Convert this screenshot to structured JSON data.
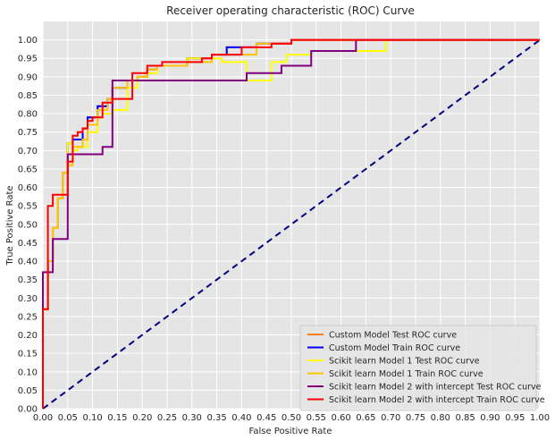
{
  "chart_data": {
    "type": "line",
    "title": "Receiver operating characteristic (ROC) Curve",
    "xlabel": "False Positive Rate",
    "ylabel": "True Positive Rate",
    "xlim": [
      0,
      1
    ],
    "ylim": [
      0,
      1.05
    ],
    "x_ticks": [
      "0.00",
      "0.05",
      "0.10",
      "0.15",
      "0.20",
      "0.25",
      "0.30",
      "0.35",
      "0.40",
      "0.45",
      "0.50",
      "0.55",
      "0.60",
      "0.65",
      "0.70",
      "0.75",
      "0.80",
      "0.85",
      "0.90",
      "0.95",
      "1.00"
    ],
    "y_ticks": [
      "0.00",
      "0.05",
      "0.10",
      "0.15",
      "0.20",
      "0.25",
      "0.30",
      "0.35",
      "0.40",
      "0.45",
      "0.50",
      "0.55",
      "0.60",
      "0.65",
      "0.70",
      "0.75",
      "0.80",
      "0.85",
      "0.90",
      "0.95",
      "1.00"
    ],
    "grid": true,
    "legend_position": "bottom-right",
    "background": "#e5e5e5",
    "series": [
      {
        "name": "Custom Model Test ROC curve",
        "color": "#ff7f0e",
        "x": [
          0,
          0,
          0.01,
          0.01,
          0.02,
          0.02,
          0.03,
          0.03,
          0.04,
          0.04,
          0.05,
          0.05,
          0.06,
          0.06,
          0.08,
          0.08,
          0.09,
          0.09,
          0.11,
          0.11,
          0.13,
          0.13,
          0.14,
          0.14,
          0.17,
          0.17,
          0.19,
          0.19,
          0.21,
          0.21,
          0.23,
          0.23,
          0.29,
          0.29,
          0.34,
          0.34,
          0.37,
          0.37,
          0.43,
          0.43,
          0.5,
          0.5,
          1
        ],
        "y": [
          0,
          0.27,
          0.27,
          0.4,
          0.4,
          0.49,
          0.49,
          0.57,
          0.57,
          0.64,
          0.64,
          0.72,
          0.72,
          0.73,
          0.73,
          0.76,
          0.76,
          0.79,
          0.79,
          0.82,
          0.82,
          0.84,
          0.84,
          0.87,
          0.87,
          0.89,
          0.89,
          0.9,
          0.9,
          0.92,
          0.92,
          0.93,
          0.93,
          0.95,
          0.95,
          0.96,
          0.96,
          0.98,
          0.98,
          0.99,
          0.99,
          1,
          1
        ]
      },
      {
        "name": "Custom Model Train ROC curve",
        "color": "#0000ff",
        "x": [
          0,
          0,
          0.01,
          0.01,
          0.02,
          0.02,
          0.03,
          0.03,
          0.04,
          0.04,
          0.05,
          0.05,
          0.06,
          0.06,
          0.08,
          0.08,
          0.09,
          0.09,
          0.11,
          0.11,
          0.13,
          0.13,
          0.14,
          0.14,
          0.17,
          0.17,
          0.19,
          0.19,
          0.21,
          0.21,
          0.23,
          0.23,
          0.29,
          0.29,
          0.34,
          0.34,
          0.37,
          0.37,
          0.43,
          0.43,
          0.5,
          0.5,
          1
        ],
        "y": [
          0,
          0.27,
          0.27,
          0.4,
          0.4,
          0.49,
          0.49,
          0.57,
          0.57,
          0.64,
          0.64,
          0.72,
          0.72,
          0.73,
          0.73,
          0.76,
          0.76,
          0.79,
          0.79,
          0.82,
          0.82,
          0.84,
          0.84,
          0.87,
          0.87,
          0.89,
          0.89,
          0.9,
          0.9,
          0.92,
          0.92,
          0.93,
          0.93,
          0.95,
          0.95,
          0.96,
          0.96,
          0.98,
          0.98,
          0.99,
          0.99,
          1,
          1
        ]
      },
      {
        "name": "Scikit learn Model 1 Test ROC curve",
        "color": "#ffff00",
        "x": [
          0,
          0,
          0.01,
          0.01,
          0.02,
          0.02,
          0.03,
          0.03,
          0.04,
          0.04,
          0.05,
          0.05,
          0.06,
          0.06,
          0.07,
          0.07,
          0.09,
          0.09,
          0.11,
          0.11,
          0.12,
          0.12,
          0.14,
          0.14,
          0.17,
          0.17,
          0.19,
          0.19,
          0.21,
          0.21,
          0.23,
          0.23,
          0.29,
          0.29,
          0.36,
          0.36,
          0.41,
          0.41,
          0.46,
          0.46,
          0.49,
          0.49,
          0.54,
          0.54,
          0.64,
          0.64,
          0.69,
          0.69,
          1
        ],
        "y": [
          0,
          0.27,
          0.27,
          0.4,
          0.4,
          0.49,
          0.49,
          0.57,
          0.57,
          0.64,
          0.64,
          0.72,
          0.72,
          0.7,
          0.7,
          0.71,
          0.71,
          0.75,
          0.75,
          0.79,
          0.79,
          0.8,
          0.8,
          0.81,
          0.81,
          0.87,
          0.87,
          0.9,
          0.9,
          0.91,
          0.91,
          0.93,
          0.93,
          0.95,
          0.95,
          0.94,
          0.94,
          0.89,
          0.89,
          0.94,
          0.94,
          0.96,
          0.96,
          0.97,
          0.97,
          0.97,
          0.97,
          1,
          1
        ]
      },
      {
        "name": "Scikit learn Model 1 Train ROC curve",
        "color": "#ffc30b",
        "x": [
          0,
          0,
          0.01,
          0.01,
          0.02,
          0.02,
          0.03,
          0.03,
          0.04,
          0.04,
          0.05,
          0.05,
          0.06,
          0.06,
          0.08,
          0.08,
          0.09,
          0.09,
          0.11,
          0.11,
          0.13,
          0.13,
          0.14,
          0.14,
          0.17,
          0.17,
          0.19,
          0.19,
          0.21,
          0.21,
          0.23,
          0.23,
          0.29,
          0.29,
          0.34,
          0.34,
          0.37,
          0.37,
          0.43,
          0.43,
          0.5,
          0.5,
          1
        ],
        "y": [
          0,
          0.27,
          0.27,
          0.4,
          0.4,
          0.49,
          0.49,
          0.57,
          0.57,
          0.64,
          0.64,
          0.66,
          0.66,
          0.71,
          0.71,
          0.73,
          0.73,
          0.77,
          0.77,
          0.81,
          0.81,
          0.84,
          0.84,
          0.87,
          0.87,
          0.89,
          0.89,
          0.9,
          0.9,
          0.92,
          0.92,
          0.93,
          0.93,
          0.94,
          0.94,
          0.96,
          0.96,
          0.96,
          0.96,
          0.99,
          0.99,
          1,
          1
        ]
      },
      {
        "name": "Scikit learn Model 2 with intercept Test ROC curve",
        "color": "#800080",
        "x": [
          0,
          0,
          0.02,
          0.02,
          0.05,
          0.05,
          0.12,
          0.12,
          0.14,
          0.14,
          0.41,
          0.41,
          0.48,
          0.48,
          0.54,
          0.54,
          0.63,
          0.63,
          1
        ],
        "y": [
          0,
          0.37,
          0.37,
          0.46,
          0.46,
          0.69,
          0.69,
          0.71,
          0.71,
          0.89,
          0.89,
          0.91,
          0.91,
          0.93,
          0.93,
          0.97,
          0.97,
          1,
          1
        ]
      },
      {
        "name": "Scikit learn Model 2 with intercept Train ROC curve",
        "color": "#ff0000",
        "x": [
          0,
          0,
          0.01,
          0.01,
          0.02,
          0.02,
          0.05,
          0.05,
          0.06,
          0.06,
          0.07,
          0.07,
          0.08,
          0.08,
          0.09,
          0.09,
          0.1,
          0.1,
          0.12,
          0.12,
          0.14,
          0.14,
          0.18,
          0.18,
          0.21,
          0.21,
          0.24,
          0.24,
          0.25,
          0.25,
          0.32,
          0.32,
          0.34,
          0.34,
          0.36,
          0.36,
          0.4,
          0.4,
          0.46,
          0.46,
          0.5,
          0.5,
          1
        ],
        "y": [
          0,
          0.27,
          0.27,
          0.55,
          0.55,
          0.58,
          0.58,
          0.67,
          0.67,
          0.74,
          0.74,
          0.75,
          0.75,
          0.76,
          0.76,
          0.78,
          0.78,
          0.79,
          0.79,
          0.83,
          0.83,
          0.84,
          0.84,
          0.91,
          0.91,
          0.93,
          0.93,
          0.94,
          0.94,
          0.94,
          0.94,
          0.95,
          0.95,
          0.96,
          0.96,
          0.96,
          0.96,
          0.98,
          0.98,
          0.99,
          0.99,
          1,
          1
        ]
      }
    ],
    "reference_line": {
      "x": [
        0,
        1
      ],
      "y": [
        0,
        1
      ],
      "color": "#000080",
      "style": "dashed"
    }
  }
}
